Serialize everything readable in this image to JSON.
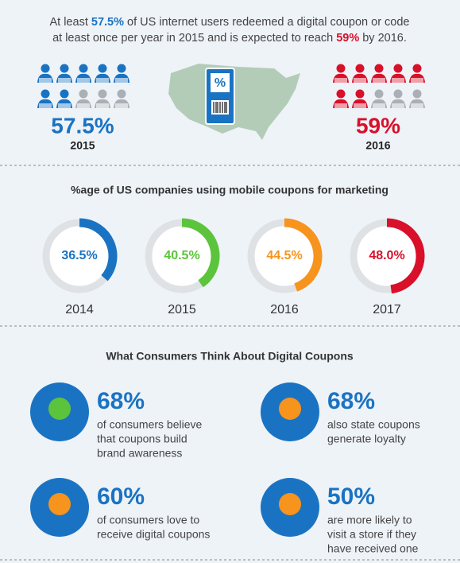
{
  "intro": [
    "At least ",
    "57.5%",
    " of US internet users redeemed a digital coupon or code at least once per year in 2015 and is expected to reach ",
    "59%",
    " by 2016."
  ],
  "users": [
    {
      "value": "57.5%",
      "year": "2015"
    },
    {
      "value": "59%",
      "year": "2016"
    }
  ],
  "chart_data": {
    "type": "donut",
    "title": "%age of US companies using mobile coupons for marketing",
    "categories": [
      "2014",
      "2015",
      "2016",
      "2017"
    ],
    "values": [
      36.5,
      40.5,
      44.5,
      48.0
    ],
    "value_labels": [
      "36.5%",
      "40.5%",
      "44.5%",
      "48.0%"
    ],
    "colors": [
      "#1a73c2",
      "#5cc43c",
      "#f7941d",
      "#d9102a"
    ]
  },
  "consumers": {
    "title": "What Consumers Think About Digital Coupons",
    "stats": [
      {
        "value": "68%",
        "lines": [
          "of consumers believe",
          "that coupons build",
          "brand awareness"
        ]
      },
      {
        "value": "68%",
        "lines": [
          "also state coupons",
          "generate loyalty"
        ]
      },
      {
        "value": "60%",
        "lines": [
          "of consumers love to",
          "receive digital coupons"
        ]
      },
      {
        "value": "50%",
        "lines": [
          "are more likely to",
          "visit a store if they",
          "have received one"
        ]
      }
    ]
  }
}
